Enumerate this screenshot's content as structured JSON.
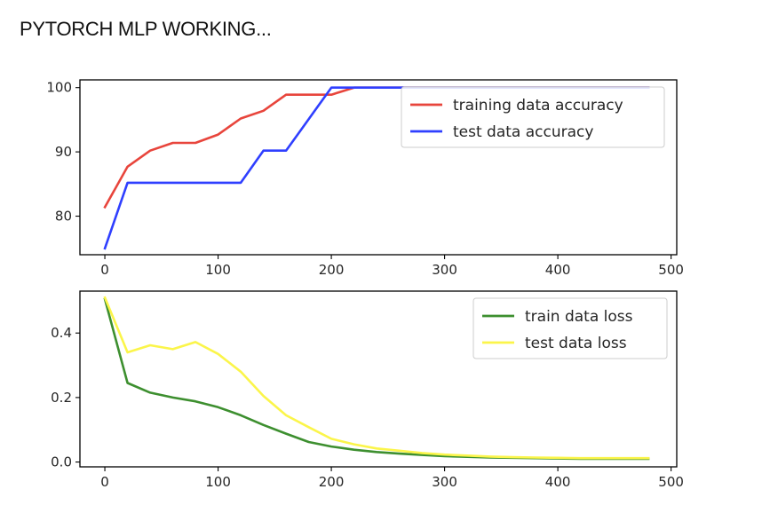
{
  "page": {
    "title": "PYTORCH MLP WORKING..."
  },
  "chart_data": [
    {
      "type": "line",
      "xlim": [
        -22,
        505
      ],
      "ylim": [
        74,
        101.2
      ],
      "xticks": [
        0,
        100,
        200,
        300,
        400,
        500
      ],
      "yticks": [
        80,
        90,
        100
      ],
      "grid": false,
      "legend_position": "top-right",
      "x": [
        0,
        20,
        40,
        60,
        80,
        100,
        120,
        140,
        160,
        180,
        200,
        220,
        240,
        260,
        280,
        300,
        320,
        340,
        360,
        380,
        400,
        420,
        440,
        460,
        480
      ],
      "series": [
        {
          "name": "training data accuracy",
          "color": "#e8453c",
          "values": [
            81.4,
            87.7,
            90.2,
            91.4,
            91.4,
            92.7,
            95.2,
            96.4,
            98.9,
            98.9,
            98.9,
            100,
            100,
            100,
            100,
            100,
            100,
            100,
            100,
            100,
            100,
            100,
            100,
            100,
            100
          ]
        },
        {
          "name": "test data accuracy",
          "color": "#2f3fff",
          "values": [
            75.0,
            85.2,
            85.2,
            85.2,
            85.2,
            85.2,
            85.2,
            90.2,
            90.2,
            95.1,
            100,
            100,
            100,
            100,
            100,
            100,
            100,
            100,
            100,
            100,
            100,
            100,
            100,
            100,
            100
          ]
        }
      ]
    },
    {
      "type": "line",
      "xlim": [
        -22,
        505
      ],
      "ylim": [
        -0.015,
        0.53
      ],
      "xticks": [
        0,
        100,
        200,
        300,
        400,
        500
      ],
      "yticks": [
        0.0,
        0.2,
        0.4
      ],
      "grid": false,
      "legend_position": "top-right",
      "x": [
        0,
        20,
        40,
        60,
        80,
        100,
        120,
        140,
        160,
        180,
        200,
        220,
        240,
        260,
        280,
        300,
        320,
        340,
        360,
        380,
        400,
        420,
        440,
        460,
        480
      ],
      "series": [
        {
          "name": "train data loss",
          "color": "#3d8f2f",
          "values": [
            0.505,
            0.245,
            0.215,
            0.2,
            0.188,
            0.17,
            0.145,
            0.115,
            0.088,
            0.062,
            0.048,
            0.038,
            0.031,
            0.026,
            0.022,
            0.018,
            0.016,
            0.014,
            0.013,
            0.012,
            0.011,
            0.01,
            0.01,
            0.01,
            0.01
          ]
        },
        {
          "name": "test data loss",
          "color": "#fbf54a",
          "values": [
            0.51,
            0.34,
            0.362,
            0.35,
            0.372,
            0.335,
            0.28,
            0.205,
            0.145,
            0.108,
            0.072,
            0.055,
            0.042,
            0.035,
            0.028,
            0.023,
            0.02,
            0.017,
            0.015,
            0.014,
            0.013,
            0.012,
            0.012,
            0.012,
            0.012
          ]
        }
      ]
    }
  ]
}
